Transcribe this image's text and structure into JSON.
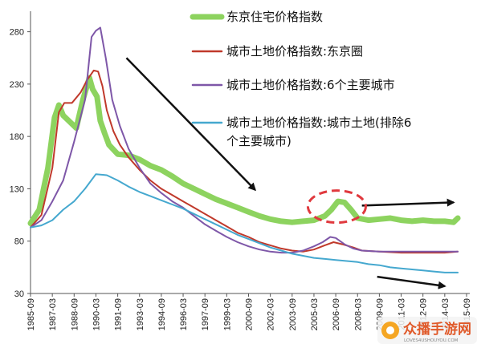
{
  "chart_data": {
    "type": "line",
    "title": "",
    "xlabel": "",
    "ylabel": "",
    "ylim": [
      30,
      295
    ],
    "yticks": [
      30,
      80,
      130,
      180,
      230,
      280
    ],
    "grid": false,
    "legend_position": "top-right",
    "xticks": [
      "1985-09",
      "1987-03",
      "1988-09",
      "1990-03",
      "1991-09",
      "1993-03",
      "1994-09",
      "1996-03",
      "1997-09",
      "1999-03",
      "2000-09",
      "2002-03",
      "2003-09",
      "2005-03",
      "2006-09",
      "2008-03",
      "2009-09",
      "2011-03",
      "2012-09",
      "2014-03",
      "2015-09"
    ],
    "series": [
      {
        "name": "东京住宅价格指数",
        "color": "#8dd35f",
        "width": 7,
        "points": [
          [
            0,
            97
          ],
          [
            0.4,
            110
          ],
          [
            0.8,
            150
          ],
          [
            1.1,
            198
          ],
          [
            1.3,
            210
          ],
          [
            1.5,
            200
          ],
          [
            1.8,
            194
          ],
          [
            2.1,
            188
          ],
          [
            2.4,
            215
          ],
          [
            2.7,
            236
          ],
          [
            2.85,
            225
          ],
          [
            3.05,
            218
          ],
          [
            3.2,
            195
          ],
          [
            3.4,
            183
          ],
          [
            3.6,
            172
          ],
          [
            4.0,
            163
          ],
          [
            4.5,
            162
          ],
          [
            5.0,
            158
          ],
          [
            5.5,
            152
          ],
          [
            6.0,
            148
          ],
          [
            6.5,
            142
          ],
          [
            7.0,
            135
          ],
          [
            7.5,
            130
          ],
          [
            8.0,
            125
          ],
          [
            8.5,
            120
          ],
          [
            9.0,
            116
          ],
          [
            9.5,
            112
          ],
          [
            10.0,
            108
          ],
          [
            10.5,
            104
          ],
          [
            11.0,
            101
          ],
          [
            11.5,
            99
          ],
          [
            12.0,
            98
          ],
          [
            12.5,
            99
          ],
          [
            13.0,
            100
          ],
          [
            13.5,
            104
          ],
          [
            13.8,
            110
          ],
          [
            14.1,
            118
          ],
          [
            14.4,
            117
          ],
          [
            14.7,
            110
          ],
          [
            15.0,
            102
          ],
          [
            15.5,
            100
          ],
          [
            16.0,
            101
          ],
          [
            16.5,
            102
          ],
          [
            17.0,
            100
          ],
          [
            17.5,
            99
          ],
          [
            18.0,
            100
          ],
          [
            18.5,
            99
          ],
          [
            19.0,
            99
          ],
          [
            19.4,
            98
          ],
          [
            19.6,
            102
          ]
        ]
      },
      {
        "name": "城市土地价格指数:东京圈",
        "color": "#c0392b",
        "width": 2,
        "points": [
          [
            0,
            93
          ],
          [
            0.5,
            105
          ],
          [
            1.0,
            150
          ],
          [
            1.3,
            203
          ],
          [
            1.55,
            212
          ],
          [
            1.9,
            212
          ],
          [
            2.3,
            222
          ],
          [
            2.6,
            234
          ],
          [
            2.9,
            243
          ],
          [
            3.1,
            242
          ],
          [
            3.3,
            228
          ],
          [
            3.5,
            205
          ],
          [
            3.8,
            185
          ],
          [
            4.1,
            172
          ],
          [
            4.5,
            160
          ],
          [
            5.0,
            148
          ],
          [
            5.5,
            138
          ],
          [
            6.0,
            130
          ],
          [
            6.5,
            124
          ],
          [
            7.0,
            118
          ],
          [
            7.5,
            112
          ],
          [
            8.0,
            106
          ],
          [
            8.5,
            100
          ],
          [
            9.0,
            94
          ],
          [
            9.5,
            88
          ],
          [
            10.0,
            84
          ],
          [
            10.5,
            79
          ],
          [
            11.0,
            76
          ],
          [
            11.5,
            73
          ],
          [
            12.0,
            71
          ],
          [
            12.5,
            70
          ],
          [
            13.0,
            72
          ],
          [
            13.5,
            76
          ],
          [
            13.9,
            79
          ],
          [
            14.3,
            77
          ],
          [
            14.8,
            74
          ],
          [
            15.2,
            71
          ],
          [
            16.0,
            70
          ],
          [
            17.0,
            69
          ],
          [
            18.0,
            69
          ],
          [
            19.0,
            69
          ],
          [
            19.6,
            70
          ]
        ]
      },
      {
        "name": "城市土地价格指数:6个主要城市",
        "color": "#7e57a8",
        "width": 2,
        "points": [
          [
            0,
            93
          ],
          [
            0.5,
            100
          ],
          [
            1.0,
            118
          ],
          [
            1.5,
            138
          ],
          [
            2.0,
            175
          ],
          [
            2.5,
            215
          ],
          [
            2.8,
            275
          ],
          [
            3.0,
            281
          ],
          [
            3.2,
            284
          ],
          [
            3.45,
            255
          ],
          [
            3.75,
            215
          ],
          [
            4.1,
            190
          ],
          [
            4.5,
            168
          ],
          [
            5.0,
            150
          ],
          [
            5.5,
            135
          ],
          [
            6.0,
            126
          ],
          [
            6.5,
            118
          ],
          [
            7.0,
            112
          ],
          [
            7.5,
            104
          ],
          [
            8.0,
            96
          ],
          [
            8.5,
            90
          ],
          [
            9.0,
            84
          ],
          [
            9.5,
            79
          ],
          [
            10.0,
            75
          ],
          [
            10.5,
            72
          ],
          [
            11.0,
            70
          ],
          [
            11.5,
            69
          ],
          [
            12.0,
            69
          ],
          [
            12.5,
            71
          ],
          [
            13.0,
            75
          ],
          [
            13.4,
            79
          ],
          [
            13.75,
            84
          ],
          [
            14.0,
            83
          ],
          [
            14.4,
            77
          ],
          [
            14.8,
            73
          ],
          [
            15.2,
            71
          ],
          [
            16.0,
            70
          ],
          [
            17.0,
            70
          ],
          [
            18.0,
            70
          ],
          [
            19.0,
            70
          ],
          [
            19.6,
            70
          ]
        ]
      },
      {
        "name": "城市土地价格指数:城市土地(排除6个主要城市)",
        "color": "#45a8cf",
        "width": 2,
        "points": [
          [
            0,
            93
          ],
          [
            0.5,
            95
          ],
          [
            1.0,
            100
          ],
          [
            1.5,
            110
          ],
          [
            2.0,
            118
          ],
          [
            2.5,
            130
          ],
          [
            3.0,
            144
          ],
          [
            3.5,
            143
          ],
          [
            4.0,
            138
          ],
          [
            4.5,
            132
          ],
          [
            5.0,
            127
          ],
          [
            5.5,
            123
          ],
          [
            6.0,
            119
          ],
          [
            6.5,
            115
          ],
          [
            7.0,
            111
          ],
          [
            7.5,
            106
          ],
          [
            8.0,
            101
          ],
          [
            8.5,
            96
          ],
          [
            9.0,
            91
          ],
          [
            9.5,
            86
          ],
          [
            10.0,
            82
          ],
          [
            10.5,
            78
          ],
          [
            11.0,
            74
          ],
          [
            11.5,
            71
          ],
          [
            12.0,
            68
          ],
          [
            12.5,
            66
          ],
          [
            13.0,
            64
          ],
          [
            13.5,
            63
          ],
          [
            14.0,
            62
          ],
          [
            14.5,
            61
          ],
          [
            15.0,
            60
          ],
          [
            15.5,
            58
          ],
          [
            16.0,
            57
          ],
          [
            16.5,
            55
          ],
          [
            17.0,
            54
          ],
          [
            17.5,
            53
          ],
          [
            18.0,
            52
          ],
          [
            18.5,
            51
          ],
          [
            19.0,
            50
          ],
          [
            19.6,
            50
          ]
        ]
      }
    ],
    "annotations": [
      {
        "kind": "arrow",
        "label": "decline-arrow",
        "from": [
          4.4,
          255
        ],
        "to": [
          10.3,
          129
        ]
      },
      {
        "kind": "arrow",
        "label": "upper-right-arrow",
        "from": [
          15.2,
          114
        ],
        "to": [
          19.4,
          117
        ]
      },
      {
        "kind": "arrow",
        "label": "lower-right-arrow",
        "from": [
          15.9,
          46
        ],
        "to": [
          19.0,
          37
        ]
      },
      {
        "kind": "ellipse",
        "label": "peak-highlight",
        "cx": [
          14.05,
          113
        ],
        "color": "#e0393e"
      }
    ]
  },
  "watermark": {
    "text": "众播手游网",
    "subtext": "LOVES4USHOUYOU.COM"
  }
}
